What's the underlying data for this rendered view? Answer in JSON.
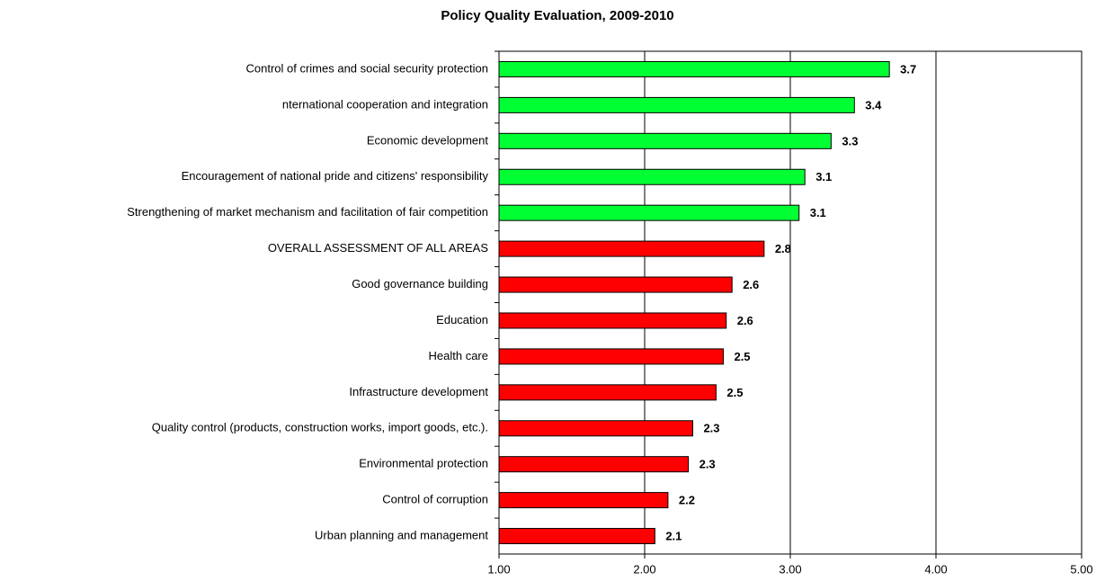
{
  "chart_data": {
    "type": "barh",
    "title": "Policy Quality Evaluation, 2009-2010",
    "categories": [
      "Control of crimes and social security protection",
      "nternational cooperation and integration",
      "Economic development",
      "Encouragement of national pride and citizens' responsibility",
      "Strengthening of market mechanism and facilitation of fair competition",
      "OVERALL ASSESSMENT OF ALL AREAS",
      "Good governance building",
      "Education",
      "Health care",
      "Infrastructure development",
      "Quality control (products, construction works, import goods, etc.).",
      "Environmental protection",
      "Control of corruption",
      "Urban planning and management"
    ],
    "values": [
      3.68,
      3.44,
      3.28,
      3.1,
      3.06,
      2.82,
      2.6,
      2.56,
      2.54,
      2.49,
      2.33,
      2.3,
      2.16,
      2.07
    ],
    "value_labels": [
      "3.7",
      "3.4",
      "3.3",
      "3.1",
      "3.1",
      "2.8",
      "2.6",
      "2.6",
      "2.5",
      "2.5",
      "2.3",
      "2.3",
      "2.2",
      "2.1"
    ],
    "colors": [
      "#00ff33",
      "#00ff33",
      "#00ff33",
      "#00ff33",
      "#00ff33",
      "#ff0000",
      "#ff0000",
      "#ff0000",
      "#ff0000",
      "#ff0000",
      "#ff0000",
      "#ff0000",
      "#ff0000",
      "#ff0000"
    ],
    "xlim": [
      1,
      5
    ],
    "xticks": [
      {
        "value": 1,
        "label": "1.00"
      },
      {
        "value": 2,
        "label": "2.00"
      },
      {
        "value": 3,
        "label": "3.00"
      },
      {
        "value": 4,
        "label": "4.00"
      },
      {
        "value": 5,
        "label": "5.00"
      }
    ],
    "grid": true
  }
}
